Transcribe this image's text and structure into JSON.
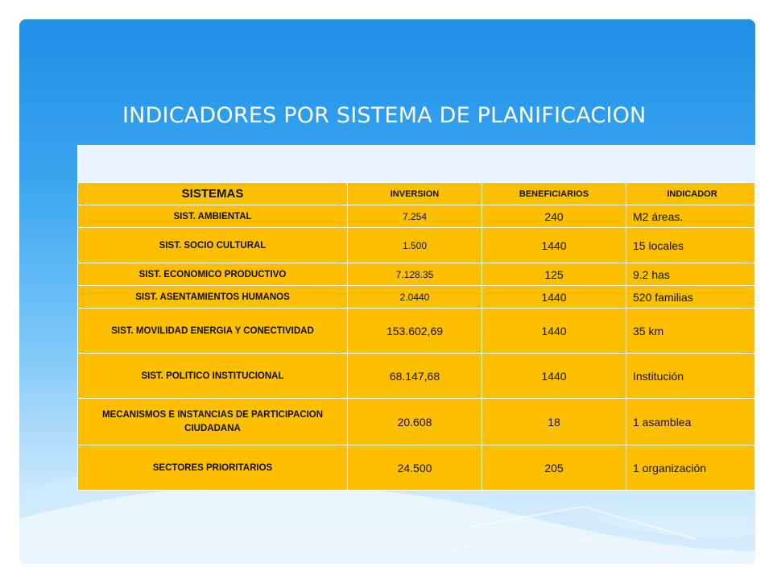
{
  "title": "INDICADORES POR SISTEMA DE PLANIFICACION",
  "table": {
    "headers": [
      "SISTEMAS",
      "INVERSION",
      "BENEFICIARIOS",
      "INDICADOR"
    ],
    "rows": [
      [
        "SIST. AMBIENTAL",
        "7.254",
        "240",
        "M2 áreas."
      ],
      [
        "SIST. SOCIO CULTURAL",
        "1.500",
        "1440",
        "15 locales"
      ],
      [
        "SIST. ECONOMICO PRODUCTIVO",
        "7.128.35",
        "125",
        "9.2 has"
      ],
      [
        "SIST. ASENTAMIENTOS HUMANOS",
        "2.0440",
        "1440",
        "520 familias"
      ],
      [
        "SIST. MOVILIDAD ENERGIA Y CONECTIVIDAD",
        "153.602,69",
        "1440",
        "35 km"
      ],
      [
        "SIST. POLITICO INSTITUCIONAL",
        "68.147,68",
        "1440",
        "Institución"
      ],
      [
        "MECANISMOS E INSTANCIAS DE PARTICIPACION CIUDADANA",
        "20.608",
        "18",
        "1 asamblea"
      ],
      [
        "SECTORES PRIORITARIOS",
        "24.500",
        "205",
        "1 organización"
      ]
    ]
  }
}
